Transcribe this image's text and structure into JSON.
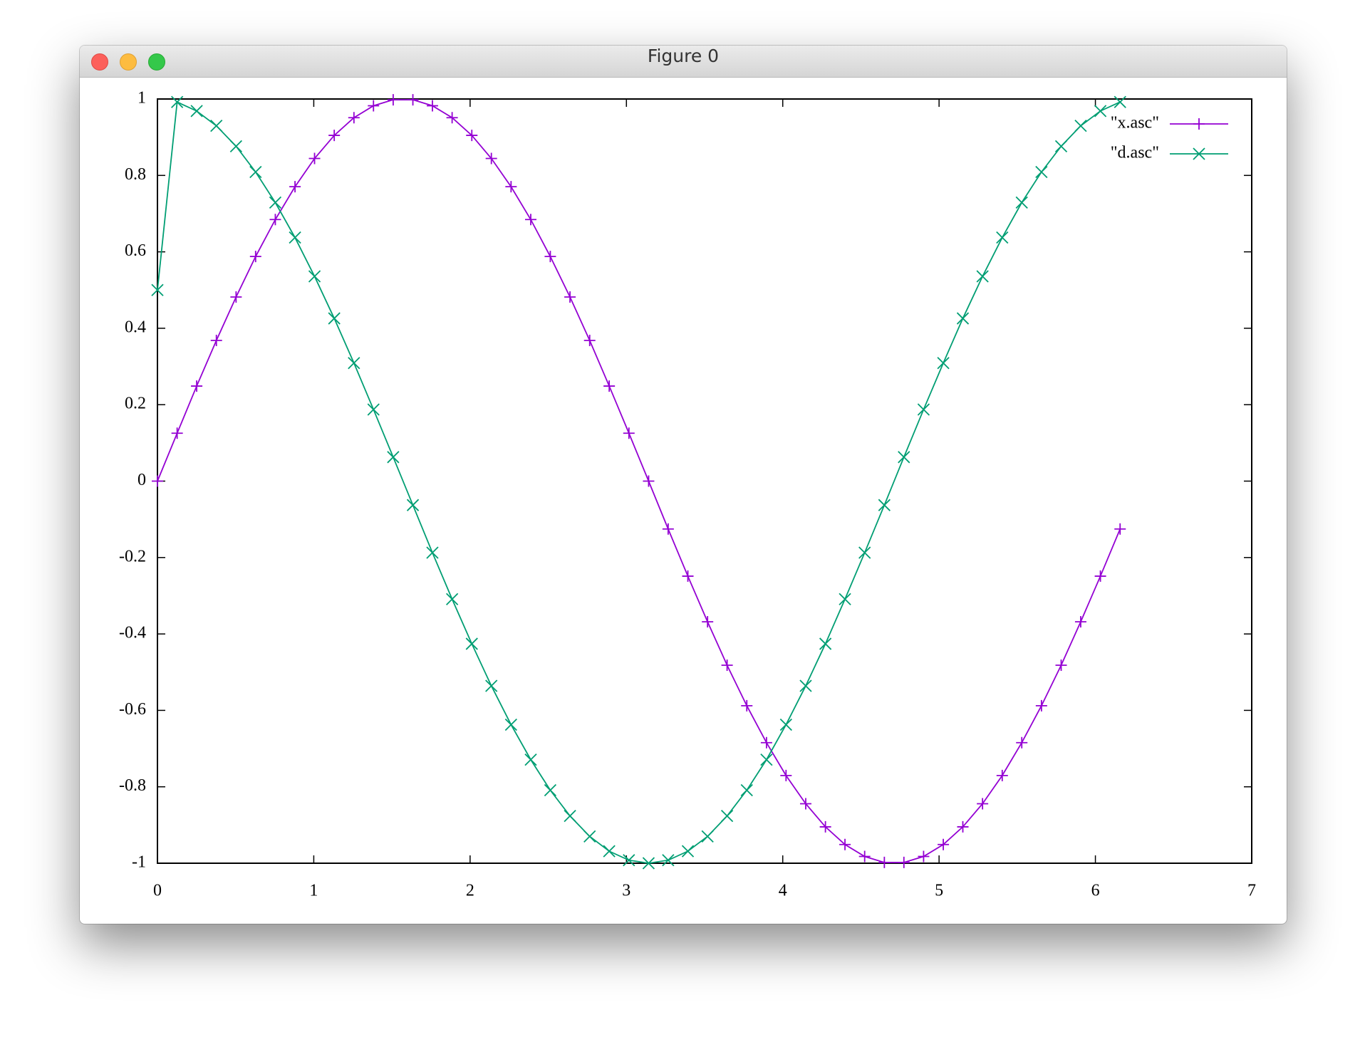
{
  "window": {
    "title": "Figure 0"
  },
  "chart_data": {
    "type": "line",
    "x": [
      0,
      0.126,
      0.251,
      0.377,
      0.503,
      0.628,
      0.754,
      0.88,
      1.005,
      1.131,
      1.257,
      1.382,
      1.508,
      1.634,
      1.759,
      1.885,
      2.011,
      2.136,
      2.262,
      2.388,
      2.513,
      2.639,
      2.765,
      2.89,
      3.016,
      3.142,
      3.267,
      3.393,
      3.519,
      3.644,
      3.77,
      3.896,
      4.021,
      4.147,
      4.273,
      4.398,
      4.524,
      4.65,
      4.775,
      4.901,
      5.027,
      5.152,
      5.278,
      5.404,
      5.529,
      5.655,
      5.781,
      5.906,
      6.032,
      6.158
    ],
    "series": [
      {
        "name": "\"x.asc\"",
        "color": "#9400d3",
        "marker": "plus",
        "values": [
          0,
          0.1253,
          0.2487,
          0.3681,
          0.4818,
          0.5878,
          0.6845,
          0.7705,
          0.8443,
          0.9048,
          0.9511,
          0.9823,
          0.998,
          0.998,
          0.9823,
          0.9511,
          0.9048,
          0.8443,
          0.7705,
          0.6845,
          0.5878,
          0.4818,
          0.3681,
          0.2487,
          0.1253,
          0,
          -0.1253,
          -0.2487,
          -0.3681,
          -0.4818,
          -0.5878,
          -0.6845,
          -0.7705,
          -0.8443,
          -0.9048,
          -0.9511,
          -0.9823,
          -0.998,
          -0.998,
          -0.9823,
          -0.9511,
          -0.9048,
          -0.8443,
          -0.7705,
          -0.6845,
          -0.5878,
          -0.4818,
          -0.3681,
          -0.2487,
          -0.1253
        ]
      },
      {
        "name": "\"d.asc\"",
        "color": "#009e73",
        "marker": "cross",
        "values": [
          0.5,
          0.9921,
          0.9686,
          0.9298,
          0.8763,
          0.809,
          0.729,
          0.6374,
          0.5358,
          0.4258,
          0.309,
          0.1874,
          0.0628,
          -0.0628,
          -0.1874,
          -0.309,
          -0.4258,
          -0.5358,
          -0.6374,
          -0.729,
          -0.809,
          -0.8763,
          -0.9298,
          -0.9686,
          -0.9921,
          -1,
          -0.9921,
          -0.9686,
          -0.9298,
          -0.8763,
          -0.809,
          -0.729,
          -0.6374,
          -0.5358,
          -0.4258,
          -0.309,
          -0.1874,
          -0.0628,
          0.0628,
          0.1874,
          0.309,
          0.4258,
          0.5358,
          0.6374,
          0.729,
          0.809,
          0.8763,
          0.9298,
          0.9686,
          0.9921
        ]
      }
    ],
    "xlim": [
      0,
      7
    ],
    "xticks": [
      0,
      1,
      2,
      3,
      4,
      5,
      6,
      7
    ],
    "ylim": [
      -1,
      1
    ],
    "yticks": [
      -1,
      -0.8,
      -0.6,
      -0.4,
      -0.2,
      0,
      0.2,
      0.4,
      0.6,
      0.8,
      1
    ],
    "grid": false,
    "legend": "top-right"
  }
}
